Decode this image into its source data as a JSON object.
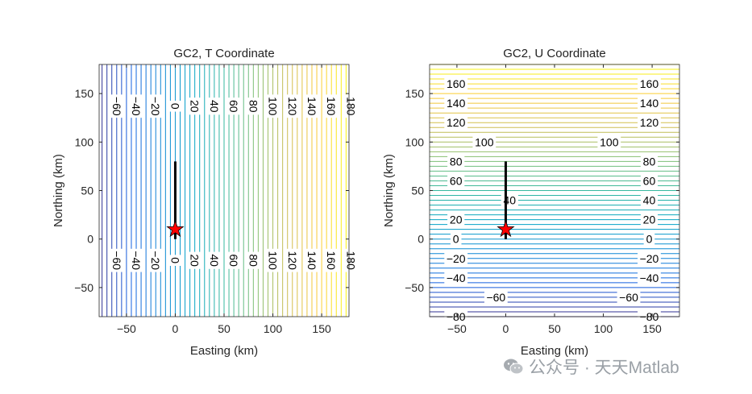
{
  "watermark": {
    "text": "公众号 · 天天Matlab",
    "icon": "wechat-icon"
  },
  "chart_data": [
    {
      "type": "contour",
      "title": "GC2, T Coordinate",
      "xlabel": "Easting (km)",
      "ylabel": "Northing (km)",
      "xlim": [
        -78,
        178
      ],
      "ylim": [
        -80,
        180
      ],
      "xticks": [
        -50,
        0,
        50,
        100,
        150
      ],
      "yticks": [
        -50,
        0,
        50,
        100,
        150
      ],
      "orientation": "vertical",
      "levels": {
        "from": -80,
        "to": 180,
        "step": 5
      },
      "labeled_levels": [
        -60,
        -40,
        -20,
        0,
        20,
        40,
        60,
        80,
        100,
        120,
        140,
        160,
        180
      ],
      "label_rows_y": [
        137,
        -22
      ],
      "colormap": "parula",
      "fault": {
        "x": [
          0,
          0
        ],
        "y": [
          0,
          80
        ],
        "color": "#000000"
      },
      "epicenter": {
        "x": 0,
        "y": 10,
        "marker": "star",
        "color": "#ff0000"
      }
    },
    {
      "type": "contour",
      "title": "GC2, U Coordinate",
      "xlabel": "Easting (km)",
      "ylabel": "Northing (km)",
      "xlim": [
        -78,
        178
      ],
      "ylim": [
        -80,
        180
      ],
      "xticks": [
        -50,
        0,
        50,
        100,
        150
      ],
      "yticks": [
        -50,
        0,
        50,
        100,
        150
      ],
      "orientation": "horizontal",
      "levels": {
        "from": -80,
        "to": 180,
        "step": 5
      },
      "labels": [
        {
          "x": -51,
          "y": 160,
          "v": 160
        },
        {
          "x": 147,
          "y": 160,
          "v": 160
        },
        {
          "x": -51,
          "y": 140,
          "v": 140
        },
        {
          "x": 147,
          "y": 140,
          "v": 140
        },
        {
          "x": -51,
          "y": 120,
          "v": 120
        },
        {
          "x": 147,
          "y": 120,
          "v": 120
        },
        {
          "x": -22,
          "y": 100,
          "v": 100
        },
        {
          "x": 106,
          "y": 100,
          "v": 100
        },
        {
          "x": -51,
          "y": 80,
          "v": 80
        },
        {
          "x": 147,
          "y": 80,
          "v": 80
        },
        {
          "x": -51,
          "y": 60,
          "v": 60
        },
        {
          "x": 147,
          "y": 60,
          "v": 60
        },
        {
          "x": 4,
          "y": 40,
          "v": 40
        },
        {
          "x": 147,
          "y": 40,
          "v": 40
        },
        {
          "x": -51,
          "y": 20,
          "v": 20
        },
        {
          "x": 147,
          "y": 20,
          "v": 20
        },
        {
          "x": -51,
          "y": 0,
          "v": 0
        },
        {
          "x": 147,
          "y": 0,
          "v": 0
        },
        {
          "x": -51,
          "y": -20,
          "v": -20
        },
        {
          "x": 147,
          "y": -20,
          "v": -20
        },
        {
          "x": -51,
          "y": -40,
          "v": -40
        },
        {
          "x": 147,
          "y": -40,
          "v": -40
        },
        {
          "x": -10,
          "y": -60,
          "v": -60
        },
        {
          "x": 126,
          "y": -60,
          "v": -60
        },
        {
          "x": -51,
          "y": -80,
          "v": -80
        },
        {
          "x": 147,
          "y": -80,
          "v": -80
        }
      ],
      "colormap": "parula",
      "fault": {
        "x": [
          0,
          0
        ],
        "y": [
          0,
          80
        ],
        "color": "#000000"
      },
      "epicenter": {
        "x": 0,
        "y": 10,
        "marker": "star",
        "color": "#ff0000"
      }
    }
  ]
}
